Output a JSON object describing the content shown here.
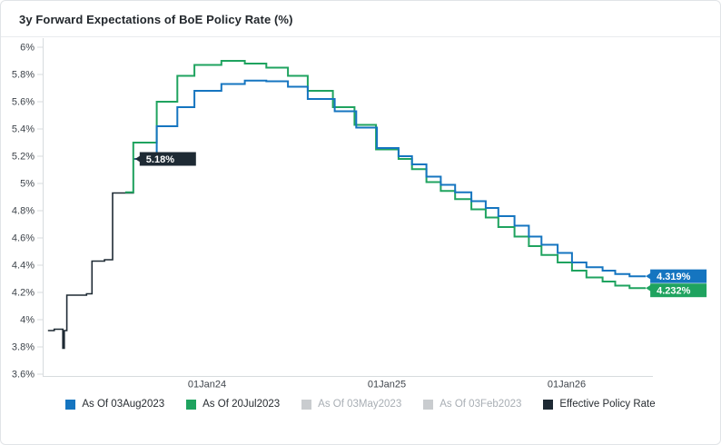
{
  "header": {
    "title": "3y Forward Expectations of BoE Policy Rate (%)"
  },
  "colors": {
    "blue": "#1575c0",
    "green": "#1fa35f",
    "navy": "#1e2a34",
    "gray_swatch": "#c9cccf",
    "axis_line": "#d7dbde",
    "tick_text": "#3e444b",
    "badge_text": "#ffffff"
  },
  "chart_data": {
    "type": "line",
    "subtype": "step",
    "title": "3y Forward Expectations of BoE Policy Rate (%)",
    "x_axis": {
      "range": [
        2023.07,
        2026.52
      ],
      "ticks": [
        {
          "t": 2024,
          "label": "01Jan24"
        },
        {
          "t": 2025,
          "label": "01Jan25"
        },
        {
          "t": 2026,
          "label": "01Jan26"
        }
      ]
    },
    "y_axis": {
      "range": [
        3.6,
        6.0
      ],
      "grid": false,
      "ticks": [
        {
          "v": 6,
          "label": "6%"
        },
        {
          "v": 5.8,
          "label": "5.8%"
        },
        {
          "v": 5.6,
          "label": "5.6%"
        },
        {
          "v": 5.4,
          "label": "5.4%"
        },
        {
          "v": 5.2,
          "label": "5.2%"
        },
        {
          "v": 5,
          "label": "5%"
        },
        {
          "v": 4.8,
          "label": "4.8%"
        },
        {
          "v": 4.6,
          "label": "4.6%"
        },
        {
          "v": 4.4,
          "label": "4.4%"
        },
        {
          "v": 4.2,
          "label": "4.2%"
        },
        {
          "v": 4,
          "label": "4%"
        },
        {
          "v": 3.8,
          "label": "3.8%"
        },
        {
          "v": 3.6,
          "label": "3.6%"
        }
      ]
    },
    "series": [
      {
        "name": "As Of 03Aug2023",
        "color": "#1575c0",
        "visible": true,
        "width": 2,
        "step_points": [
          [
            2023.6,
            5.18
          ],
          [
            2023.72,
            5.42
          ],
          [
            2023.835,
            5.56
          ],
          [
            2023.93,
            5.68
          ],
          [
            2024.08,
            5.73
          ],
          [
            2024.21,
            5.755
          ],
          [
            2024.33,
            5.75
          ],
          [
            2024.45,
            5.71
          ],
          [
            2024.56,
            5.62
          ],
          [
            2024.71,
            5.53
          ],
          [
            2024.83,
            5.41
          ],
          [
            2024.945,
            5.26
          ],
          [
            2025.065,
            5.2
          ],
          [
            2025.14,
            5.14
          ],
          [
            2025.22,
            5.05
          ],
          [
            2025.3,
            4.99
          ],
          [
            2025.38,
            4.935
          ],
          [
            2025.47,
            4.87
          ],
          [
            2025.55,
            4.82
          ],
          [
            2025.62,
            4.76
          ],
          [
            2025.71,
            4.69
          ],
          [
            2025.79,
            4.61
          ],
          [
            2025.86,
            4.55
          ],
          [
            2025.95,
            4.49
          ],
          [
            2026.03,
            4.42
          ],
          [
            2026.11,
            4.385
          ],
          [
            2026.2,
            4.36
          ],
          [
            2026.27,
            4.335
          ],
          [
            2026.35,
            4.319
          ],
          [
            2026.44,
            4.319
          ]
        ]
      },
      {
        "name": "As Of 20Jul2023",
        "color": "#1fa35f",
        "visible": true,
        "width": 2,
        "step_points": [
          [
            2023.545,
            4.935
          ],
          [
            2023.59,
            5.3
          ],
          [
            2023.72,
            5.6
          ],
          [
            2023.835,
            5.79
          ],
          [
            2023.93,
            5.87
          ],
          [
            2024.08,
            5.9
          ],
          [
            2024.21,
            5.88
          ],
          [
            2024.33,
            5.85
          ],
          [
            2024.45,
            5.79
          ],
          [
            2024.56,
            5.68
          ],
          [
            2024.7,
            5.56
          ],
          [
            2024.82,
            5.43
          ],
          [
            2024.94,
            5.25
          ],
          [
            2025.065,
            5.18
          ],
          [
            2025.14,
            5.105
          ],
          [
            2025.22,
            5.01
          ],
          [
            2025.3,
            4.945
          ],
          [
            2025.38,
            4.885
          ],
          [
            2025.47,
            4.81
          ],
          [
            2025.55,
            4.75
          ],
          [
            2025.62,
            4.68
          ],
          [
            2025.71,
            4.61
          ],
          [
            2025.79,
            4.54
          ],
          [
            2025.86,
            4.475
          ],
          [
            2025.95,
            4.42
          ],
          [
            2026.03,
            4.36
          ],
          [
            2026.11,
            4.31
          ],
          [
            2026.2,
            4.28
          ],
          [
            2026.27,
            4.25
          ],
          [
            2026.35,
            4.232
          ],
          [
            2026.44,
            4.232
          ]
        ]
      },
      {
        "name": "As Of 03May2023",
        "color": "#c9cccf",
        "visible": false,
        "width": 2,
        "step_points": []
      },
      {
        "name": "As Of 03Feb2023",
        "color": "#c9cccf",
        "visible": false,
        "width": 2,
        "step_points": []
      },
      {
        "name": "Effective Policy Rate",
        "color": "#1e2a34",
        "visible": true,
        "width": 1.6,
        "step_points": [
          [
            2023.115,
            3.92
          ],
          [
            2023.15,
            3.93
          ],
          [
            2023.195,
            3.93
          ],
          [
            2023.198,
            3.79
          ],
          [
            2023.206,
            3.92
          ],
          [
            2023.22,
            4.18
          ],
          [
            2023.33,
            4.19
          ],
          [
            2023.36,
            4.43
          ],
          [
            2023.43,
            4.44
          ],
          [
            2023.475,
            4.93
          ],
          [
            2023.59,
            5.18
          ],
          [
            2023.61,
            5.18
          ]
        ]
      }
    ],
    "end_labels": [
      {
        "text": "5.18%",
        "t": 2023.6,
        "value": 5.18,
        "color": "#1e2a34",
        "dy": -7.5
      },
      {
        "text": "4.319%",
        "t": 2026.44,
        "value": 4.319,
        "color": "#1575c0",
        "dy": -7.5
      },
      {
        "text": "4.232%",
        "t": 2026.44,
        "value": 4.232,
        "color": "#1fa35f",
        "dy": -5
      }
    ],
    "legend": [
      {
        "label": "As Of 03Aug2023",
        "active": true,
        "color": "#1575c0"
      },
      {
        "label": "As Of 20Jul2023",
        "active": true,
        "color": "#1fa35f"
      },
      {
        "label": "As Of 03May2023",
        "active": false,
        "color": "#c9cccf"
      },
      {
        "label": "As Of 03Feb2023",
        "active": false,
        "color": "#c9cccf"
      },
      {
        "label": "Effective Policy Rate",
        "active": true,
        "color": "#1e2a34"
      }
    ],
    "legend_position": "bottom"
  }
}
